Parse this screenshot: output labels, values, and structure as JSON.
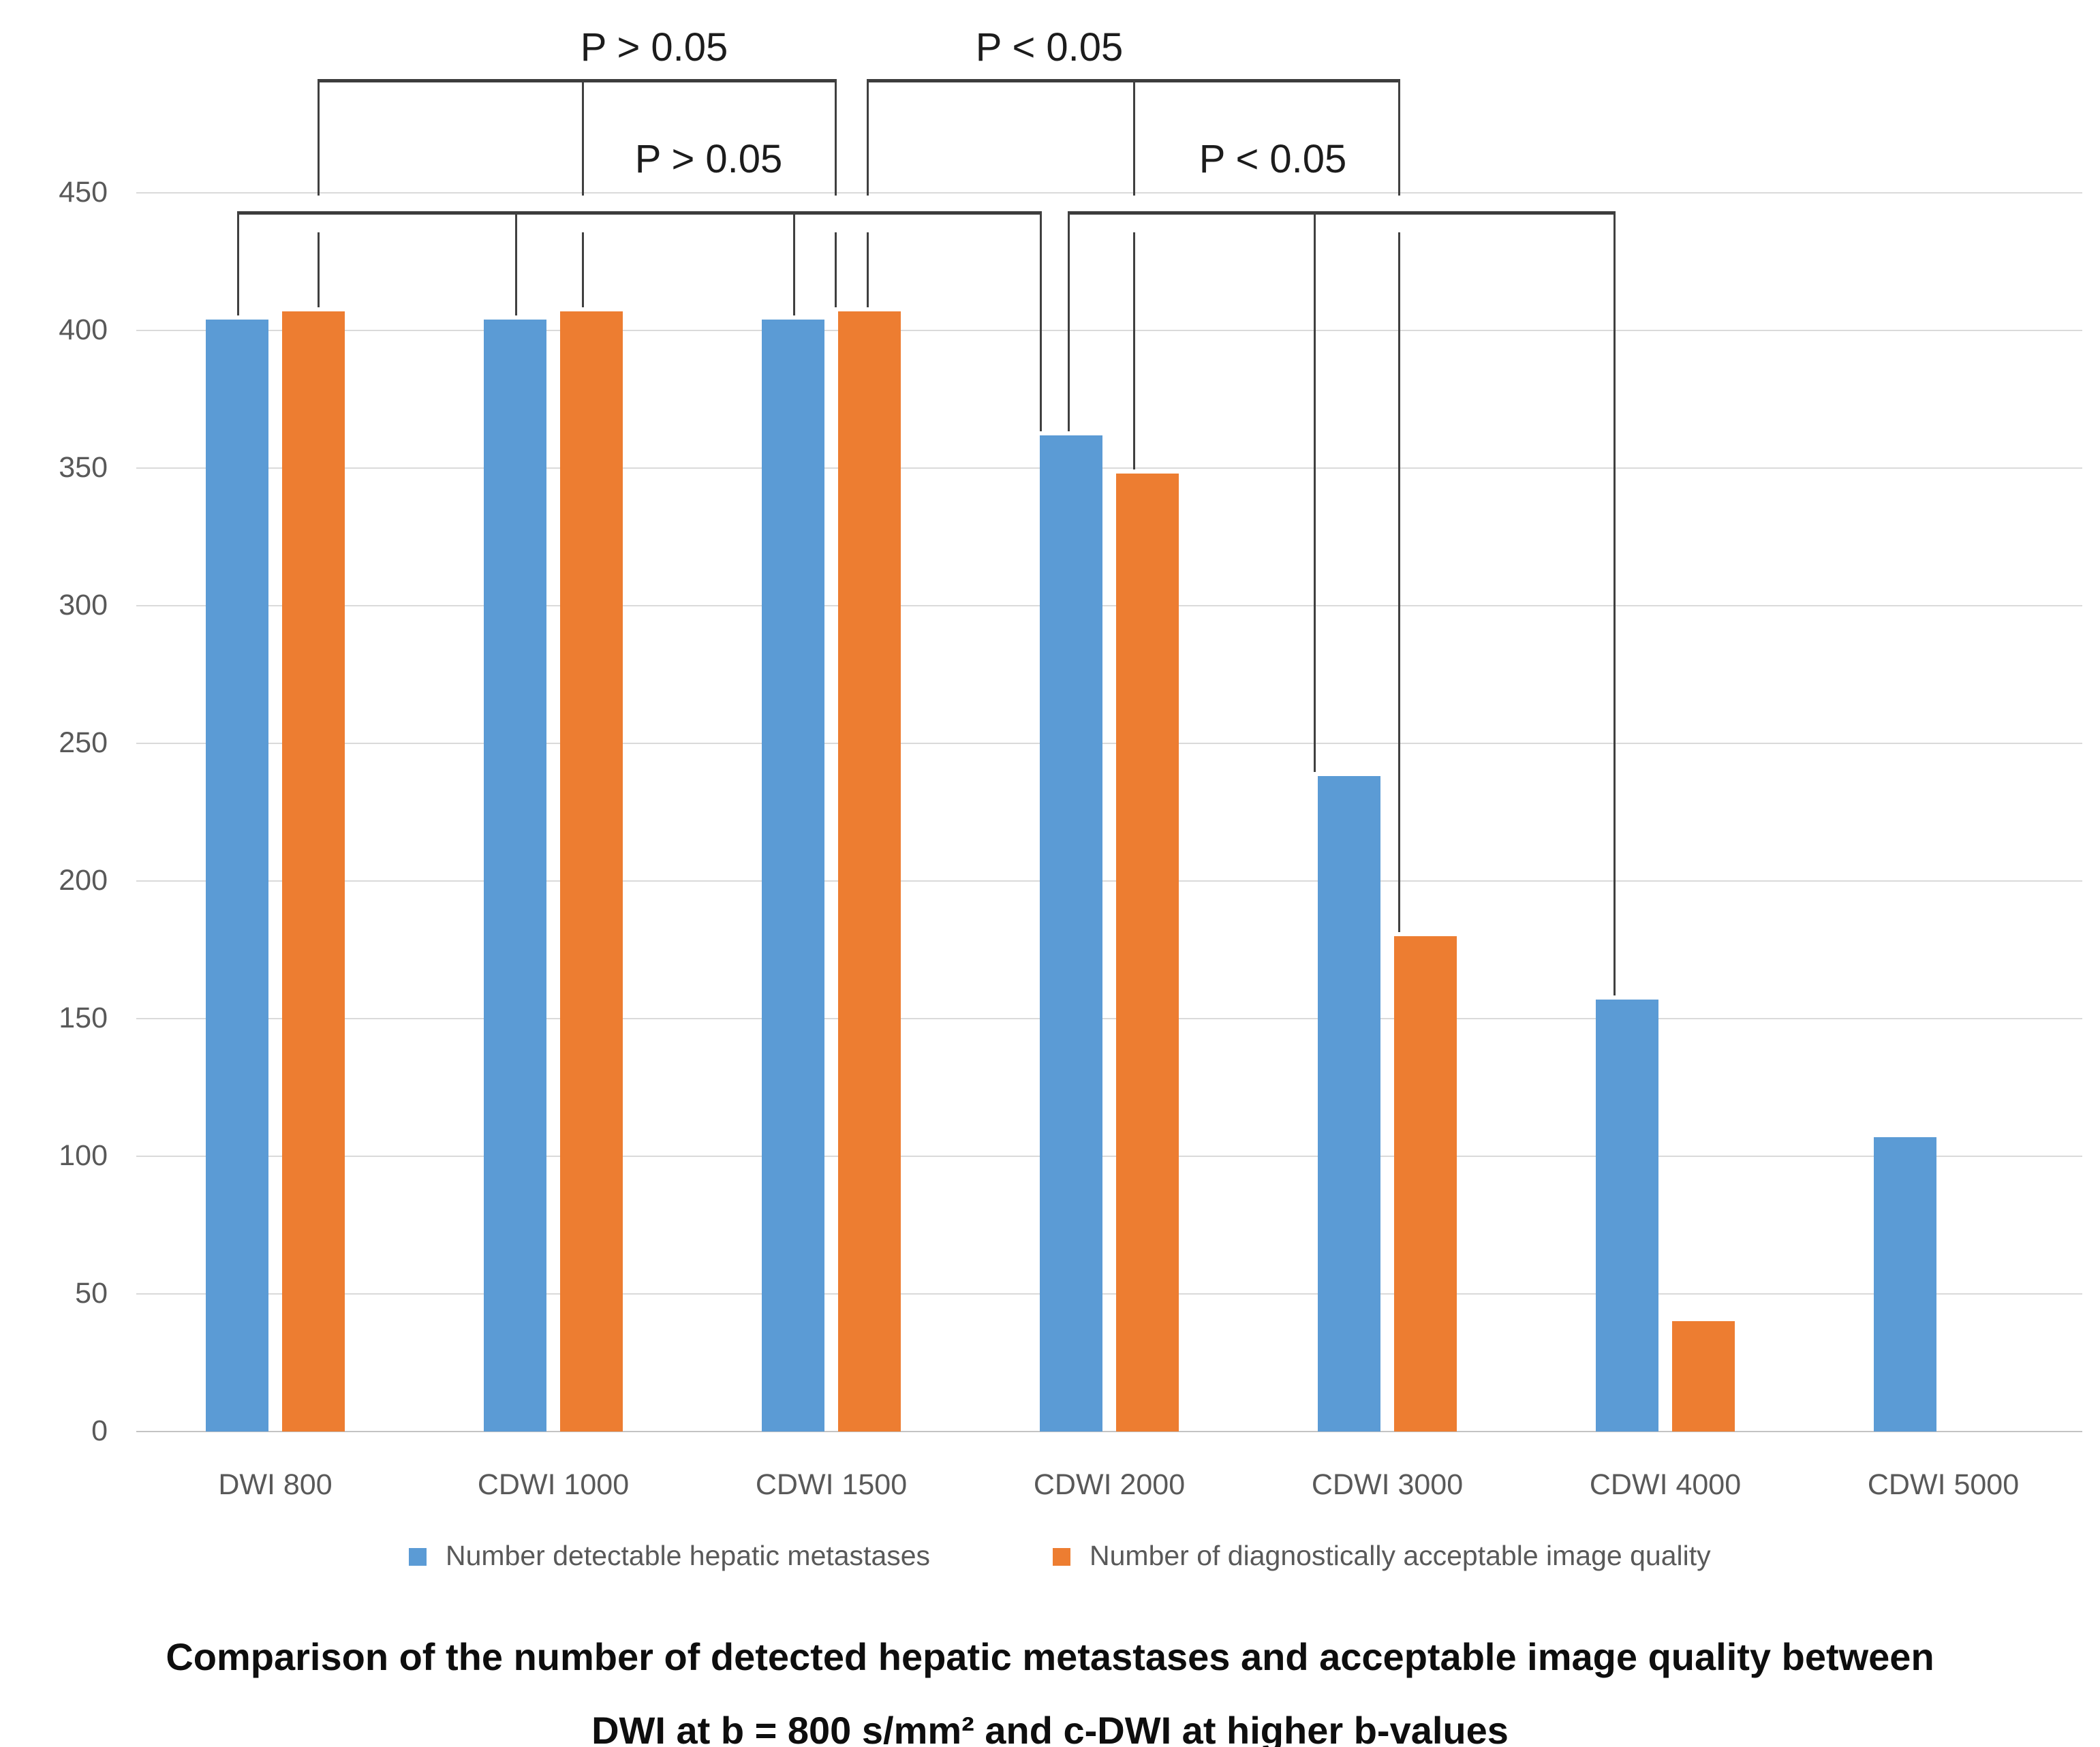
{
  "chart_data": {
    "type": "bar",
    "title_lines": [
      "Comparison of the number of detected hepatic metastases and acceptable image quality between",
      "DWI at b = 800 s/mm² and c-DWI at higher b-values"
    ],
    "categories": [
      "DWI 800",
      "CDWI 1000",
      "CDWI 1500",
      "CDWI 2000",
      "CDWI 3000",
      "CDWI 4000",
      "CDWI 5000"
    ],
    "series": [
      {
        "name": "Number detectable hepatic metastases",
        "color": "#5B9BD5",
        "values": [
          404,
          404,
          404,
          362,
          238,
          157,
          107
        ]
      },
      {
        "name": "Number of diagnostically acceptable image quality",
        "color": "#ED7D31",
        "values": [
          407,
          407,
          407,
          348,
          180,
          40,
          0
        ]
      }
    ],
    "ylim": [
      0,
      450
    ],
    "yticks": [
      0,
      50,
      100,
      150,
      200,
      250,
      300,
      350,
      400,
      450
    ],
    "grid": true,
    "legend_position": "bottom",
    "annotations": {
      "brackets": [
        {
          "label": "P > 0.05",
          "row": 1,
          "label_x": 960,
          "ticks": [
            {
              "series": 1,
              "cat": 0,
              "dx": 6
            },
            {
              "series": 1,
              "cat": 1,
              "dx": -14
            },
            {
              "series": 1,
              "cat": 2,
              "dx": -51
            }
          ]
        },
        {
          "label": "P < 0.05",
          "row": 1,
          "label_x": 1540,
          "ticks": [
            {
              "series": 1,
              "cat": 2,
              "dx": -4
            },
            {
              "series": 1,
              "cat": 3,
              "dx": -21
            },
            {
              "series": 1,
              "cat": 4,
              "dx": -40
            }
          ]
        },
        {
          "label": "P > 0.05",
          "row": 2,
          "label_x": 1040,
          "ticks": [
            {
              "series": 0,
              "cat": 0,
              "dx": 0
            },
            {
              "series": 0,
              "cat": 1,
              "dx": 0
            },
            {
              "series": 0,
              "cat": 2,
              "dx": 0
            },
            {
              "series": 0,
              "cat": 3,
              "dx": -46
            }
          ]
        },
        {
          "label": "P < 0.05",
          "row": 2,
          "label_x": 1868,
          "ticks": [
            {
              "series": 0,
              "cat": 3,
              "dx": -5
            },
            {
              "series": 0,
              "cat": 4,
              "dx": -52
            },
            {
              "series": 0,
              "cat": 5,
              "dx": -20
            }
          ]
        }
      ]
    },
    "colors": {
      "grid": "#DADADA",
      "axis": "#C3C3C3",
      "tick_label": "#595959",
      "annotation_line": "#3D3D3D",
      "annotation_text": "#1C1C1C"
    }
  }
}
